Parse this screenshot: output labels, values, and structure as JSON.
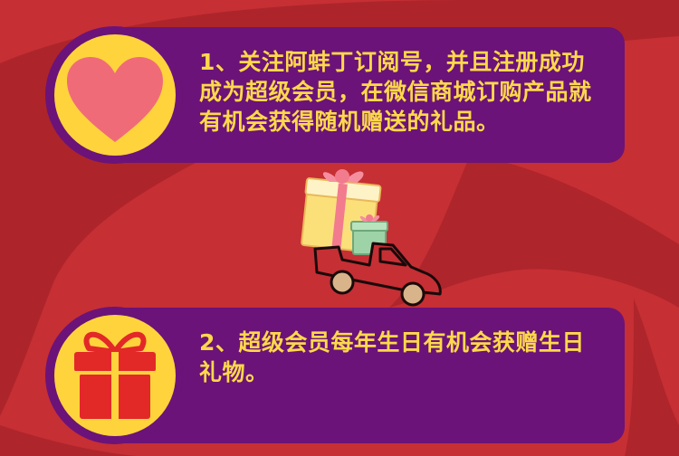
{
  "items": [
    {
      "text": "1、关注阿蚌丁订阅号，并且注册成功成为超级会员，在微信商城订购产品就有机会获得随机赠送的礼品。",
      "icon": "heart-icon"
    },
    {
      "text": "2、超级会员每年生日有机会获赠生日礼物。",
      "icon": "gift-box-icon"
    }
  ],
  "colors": {
    "background": "#c62f34",
    "card": "#6b1378",
    "text": "#fdd84b",
    "badge": "#fed33c",
    "heart": "#f06b78",
    "gift": "#e32828"
  }
}
